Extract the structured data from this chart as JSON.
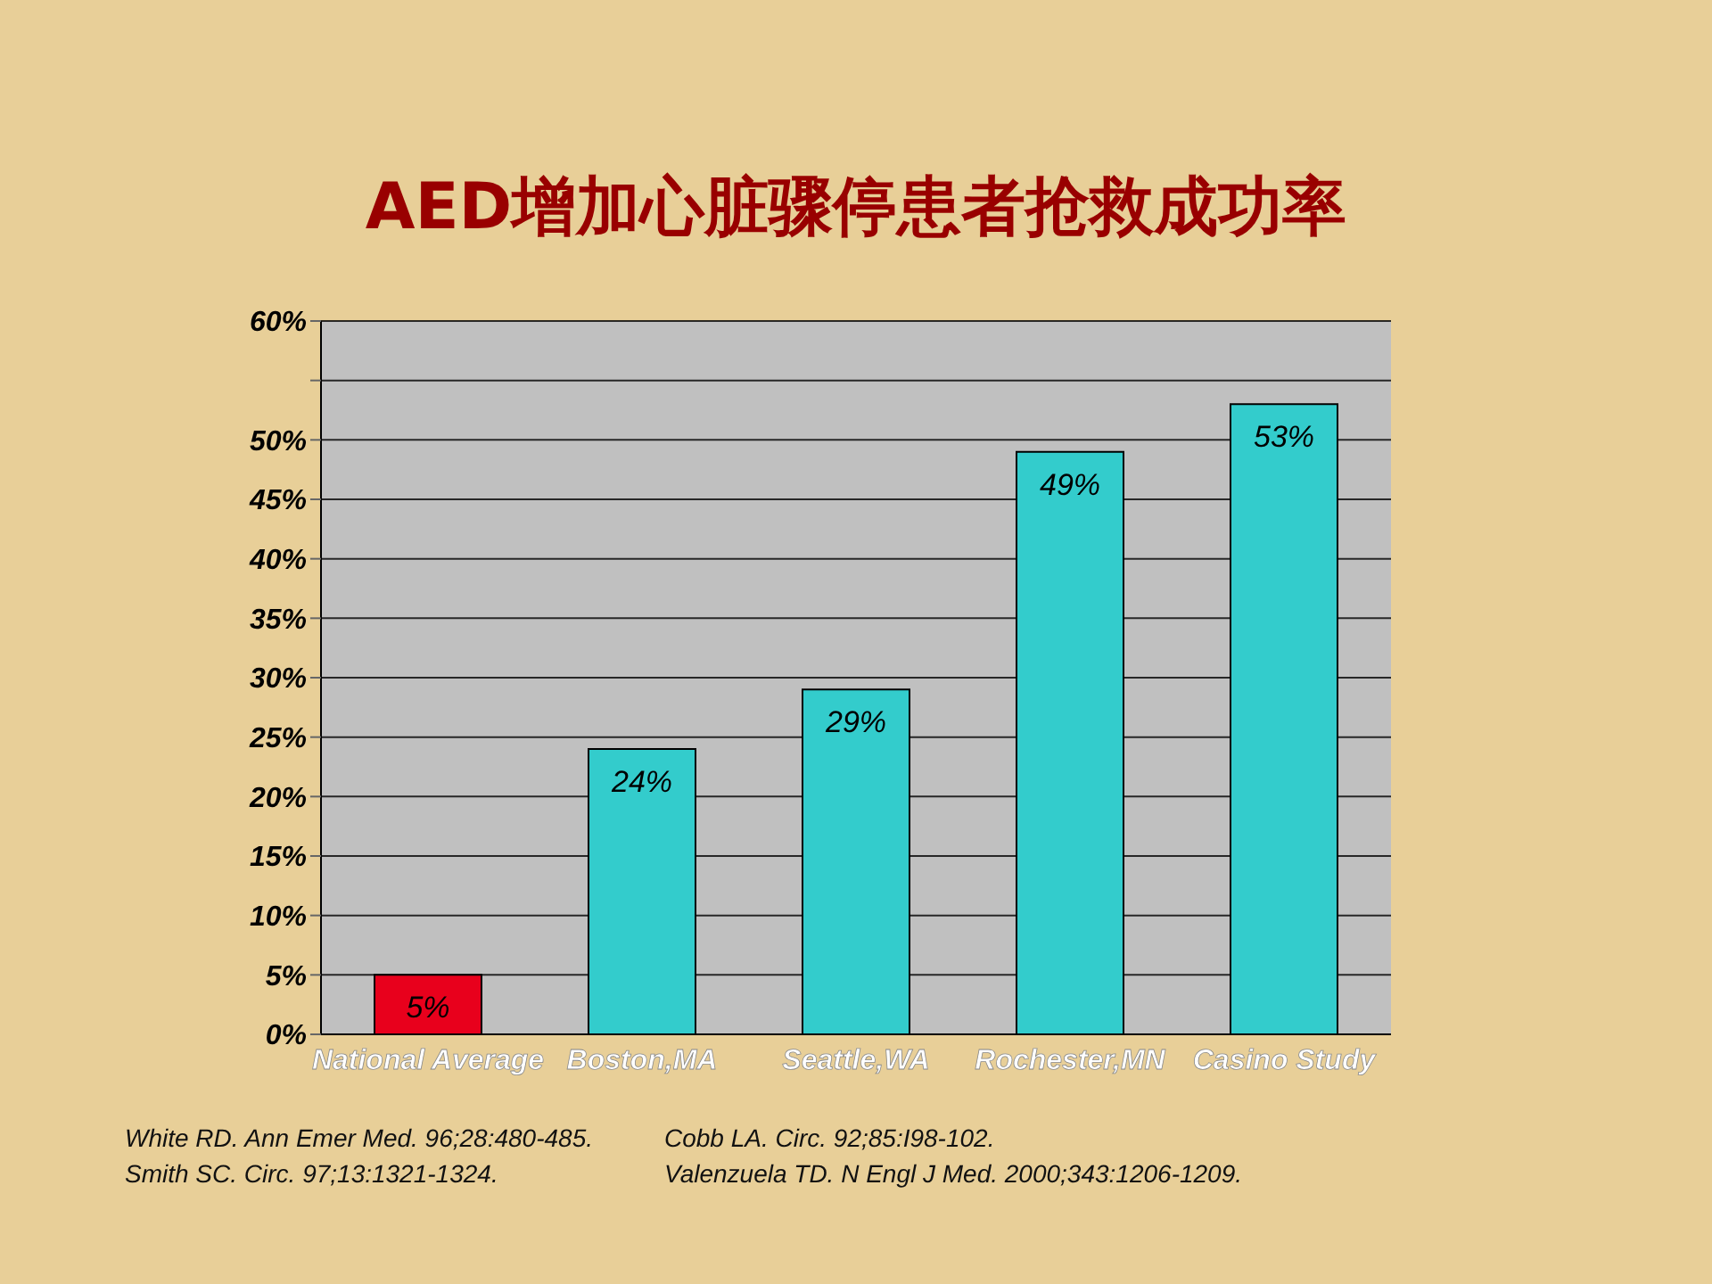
{
  "chart_data": {
    "type": "bar",
    "title": "AED增加心脏骤停患者抢救成功率",
    "categories": [
      "National Average",
      "Boston,MA",
      "Seattle,WA",
      "Rochester,MN",
      "Casino Study"
    ],
    "values": [
      5,
      24,
      29,
      49,
      53
    ],
    "colors": [
      "#e8001c",
      "#33cccc",
      "#33cccc",
      "#33cccc",
      "#33cccc"
    ],
    "value_labels": [
      "5%",
      "24%",
      "29%",
      "49%",
      "53%"
    ],
    "ylim": [
      0,
      60
    ],
    "yticks": [
      {
        "value": 0,
        "label": "0%"
      },
      {
        "value": 5,
        "label": "5%"
      },
      {
        "value": 10,
        "label": "10%"
      },
      {
        "value": 15,
        "label": "15%"
      },
      {
        "value": 20,
        "label": "20%"
      },
      {
        "value": 25,
        "label": "25%"
      },
      {
        "value": 30,
        "label": "30%"
      },
      {
        "value": 35,
        "label": "35%"
      },
      {
        "value": 40,
        "label": "40%"
      },
      {
        "value": 45,
        "label": "45%"
      },
      {
        "value": 50,
        "label": "50%"
      },
      {
        "value": 55,
        "label": null
      },
      {
        "value": 60,
        "label": "60%"
      }
    ],
    "grid": "y",
    "annotations": [
      "White RD. Ann Emer Med. 96;28:480-485.",
      "Smith SC. Circ. 97;13:1321-1324.",
      "Cobb LA. Circ. 92;85:I98-102.",
      "Valenzuela TD. N Engl J Med. 2000;343:1206-1209."
    ]
  }
}
